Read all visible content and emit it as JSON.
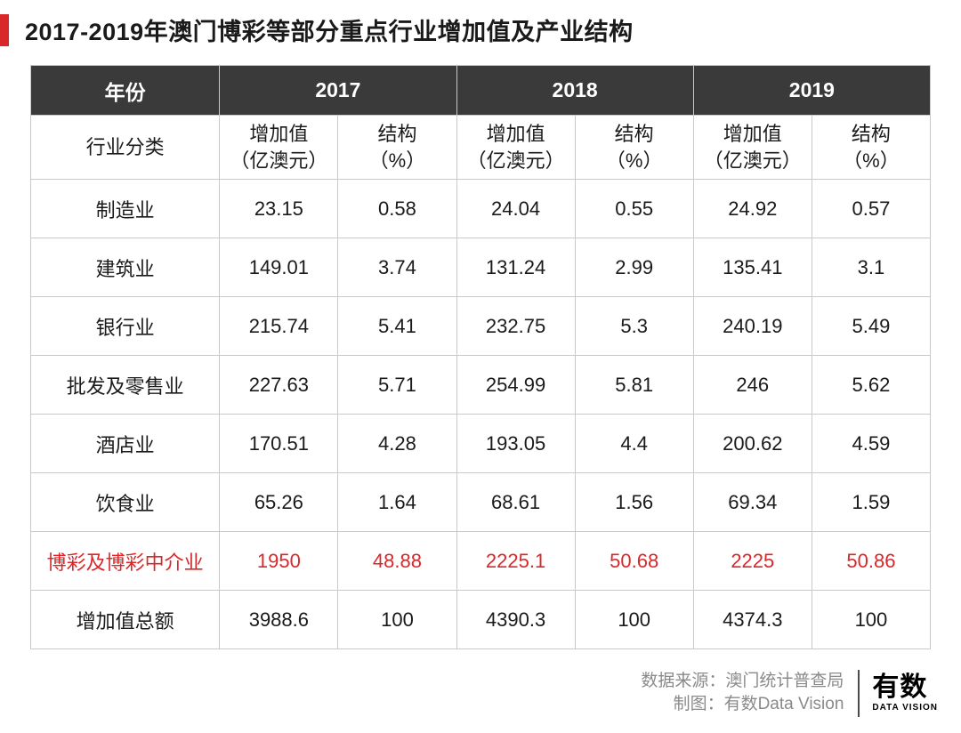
{
  "title": "2017-2019年澳门博彩等部分重点行业增加值及产业结构",
  "accent_color": "#d8282a",
  "header_bg": "#3a3a3a",
  "header_fg": "#ffffff",
  "border_color": "#c9c9c9",
  "text_color": "#1a1a1a",
  "highlight_color": "#d8282a",
  "table": {
    "corner_label": "年份",
    "row_header_label": "行业分类",
    "years": [
      "2017",
      "2018",
      "2019"
    ],
    "sub_cols": [
      {
        "label_line1": "增加值",
        "label_line2": "（亿澳元）"
      },
      {
        "label_line1": "结构",
        "label_line2": "（%）"
      }
    ],
    "rows": [
      {
        "name": "制造业",
        "v": [
          "23.15",
          "0.58",
          "24.04",
          "0.55",
          "24.92",
          "0.57"
        ],
        "highlight": false
      },
      {
        "name": "建筑业",
        "v": [
          "149.01",
          "3.74",
          "131.24",
          "2.99",
          "135.41",
          "3.1"
        ],
        "highlight": false
      },
      {
        "name": "银行业",
        "v": [
          "215.74",
          "5.41",
          "232.75",
          "5.3",
          "240.19",
          "5.49"
        ],
        "highlight": false
      },
      {
        "name": "批发及零售业",
        "v": [
          "227.63",
          "5.71",
          "254.99",
          "5.81",
          "246",
          "5.62"
        ],
        "highlight": false
      },
      {
        "name": "酒店业",
        "v": [
          "170.51",
          "4.28",
          "193.05",
          "4.4",
          "200.62",
          "4.59"
        ],
        "highlight": false
      },
      {
        "name": "饮食业",
        "v": [
          "65.26",
          "1.64",
          "68.61",
          "1.56",
          "69.34",
          "1.59"
        ],
        "highlight": false
      },
      {
        "name": "博彩及博彩中介业",
        "v": [
          "1950",
          "48.88",
          "2225.1",
          "50.68",
          "2225",
          "50.86"
        ],
        "highlight": true
      },
      {
        "name": "增加值总额",
        "v": [
          "3988.6",
          "100",
          "4390.3",
          "100",
          "4374.3",
          "100"
        ],
        "highlight": false
      }
    ]
  },
  "footer": {
    "source_label": "数据来源：",
    "source_value": "澳门统计普查局",
    "chart_label": "制图：",
    "chart_value": "有数Data Vision",
    "logo_cn": "有数",
    "logo_en": "DATA VISION"
  }
}
